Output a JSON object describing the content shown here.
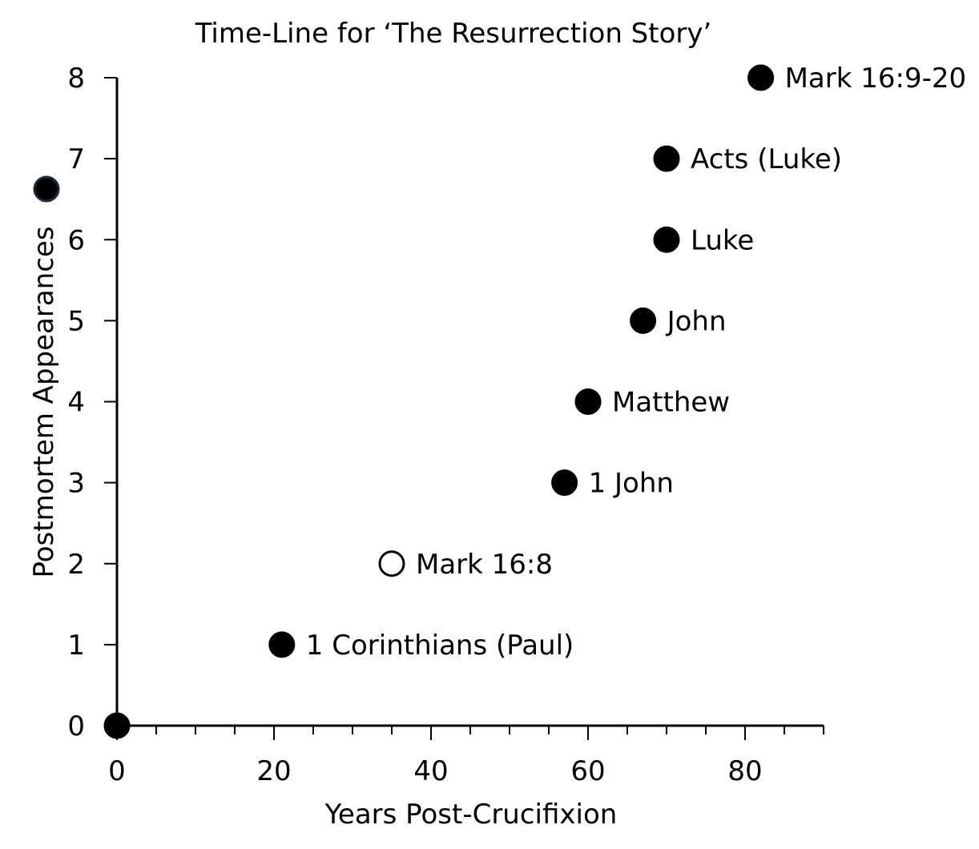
{
  "chart_data": {
    "type": "scatter",
    "title": "Time-Line for ‘The Resurrection Story’",
    "xlabel": "Years Post-Crucifixion",
    "ylabel": "Postmortem Appearances",
    "xlim": [
      0,
      90
    ],
    "ylim": [
      0,
      8
    ],
    "x_ticks": [
      0,
      20,
      40,
      60,
      80
    ],
    "x_minor_step": 5,
    "y_ticks": [
      0,
      1,
      2,
      3,
      4,
      5,
      6,
      7,
      8
    ],
    "grid": false,
    "legend": "none",
    "marker_color": "#000000",
    "points": [
      {
        "x": 0,
        "y": 0,
        "label": "",
        "filled": true
      },
      {
        "x": 21,
        "y": 1,
        "label": "1 Corinthians (Paul)",
        "filled": true
      },
      {
        "x": 35,
        "y": 2,
        "label": "Mark 16:8",
        "filled": false
      },
      {
        "x": 57,
        "y": 3,
        "label": "1 John",
        "filled": true
      },
      {
        "x": 60,
        "y": 4,
        "label": "Matthew",
        "filled": true
      },
      {
        "x": 67,
        "y": 5,
        "label": "John",
        "filled": true
      },
      {
        "x": 70,
        "y": 6,
        "label": "Luke",
        "filled": true
      },
      {
        "x": 70,
        "y": 7,
        "label": "Acts (Luke)",
        "filled": true
      },
      {
        "x": 82,
        "y": 8,
        "label": "Mark 16:9-20",
        "filled": true
      }
    ]
  }
}
